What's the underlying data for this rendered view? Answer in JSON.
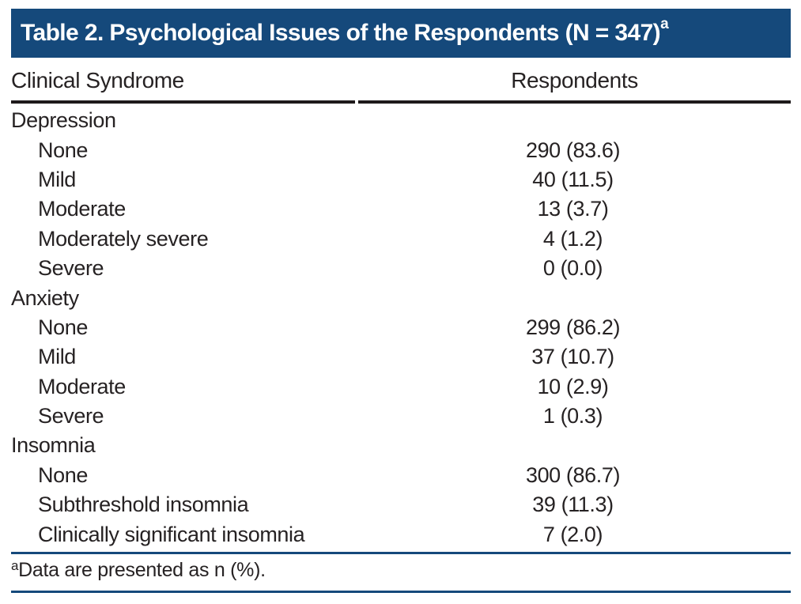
{
  "colors": {
    "header_bar": "#15497B",
    "rule_blue": "#15497B",
    "rule_black": "#1E1A1B",
    "text": "#262223"
  },
  "table": {
    "title": "Table 2. Psychological Issues of the Respondents (N = 347)",
    "title_superscript": "a",
    "columns": {
      "syndrome": "Clinical Syndrome",
      "respondents": "Respondents"
    },
    "sections": [
      {
        "label": "Depression",
        "items": [
          {
            "label": "None",
            "value": "290 (83.6)"
          },
          {
            "label": "Mild",
            "value": "40 (11.5)"
          },
          {
            "label": "Moderate",
            "value": "13 (3.7)"
          },
          {
            "label": "Moderately severe",
            "value": "4 (1.2)"
          },
          {
            "label": "Severe",
            "value": "0 (0.0)"
          }
        ]
      },
      {
        "label": "Anxiety",
        "items": [
          {
            "label": "None",
            "value": "299 (86.2)"
          },
          {
            "label": "Mild",
            "value": "37 (10.7)"
          },
          {
            "label": "Moderate",
            "value": "10 (2.9)"
          },
          {
            "label": "Severe",
            "value": "1 (0.3)"
          }
        ]
      },
      {
        "label": "Insomnia",
        "items": [
          {
            "label": "None",
            "value": "300 (86.7)"
          },
          {
            "label": "Subthreshold insomnia",
            "value": "39 (11.3)"
          },
          {
            "label": "Clinically significant insomnia",
            "value": "7 (2.0)"
          }
        ]
      }
    ],
    "footnote_superscript": "a",
    "footnote": "Data are presented as n (%)."
  }
}
